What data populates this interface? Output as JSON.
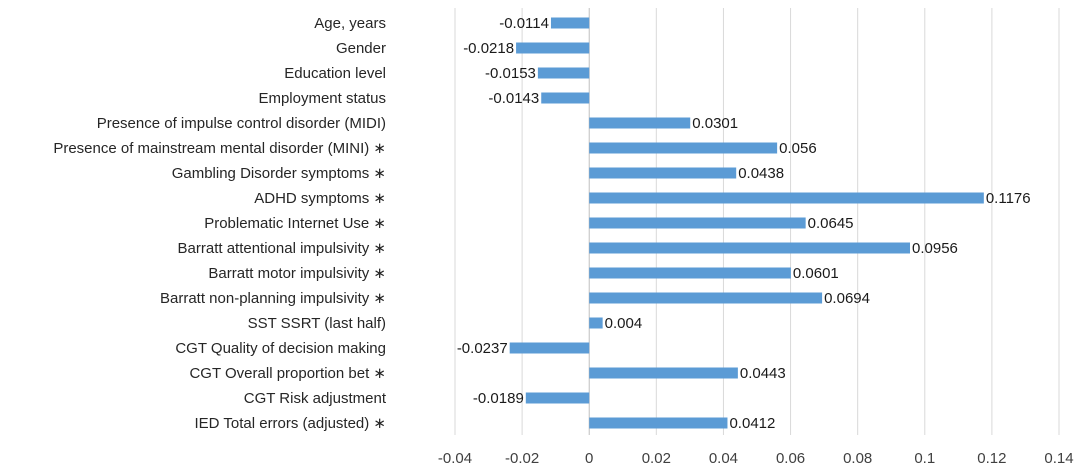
{
  "chart_data": {
    "type": "bar",
    "orientation": "horizontal",
    "categories": [
      "Age, years",
      "Gender",
      "Education level",
      "Employment status",
      "Presence of impulse control disorder (MIDI)",
      "Presence of mainstream mental disorder (MINI) ∗",
      "Gambling Disorder symptoms ∗",
      "ADHD symptoms ∗",
      "Problematic Internet Use ∗",
      "Barratt attentional impulsivity ∗",
      "Barratt motor impulsivity ∗",
      "Barratt non-planning impulsivity ∗",
      "SST SSRT (last half)",
      "CGT Quality of decision making",
      "CGT Overall proportion bet ∗",
      "CGT Risk adjustment",
      "IED Total errors (adjusted) ∗"
    ],
    "values": [
      -0.0114,
      -0.0218,
      -0.0153,
      -0.0143,
      0.0301,
      0.056,
      0.0438,
      0.1176,
      0.0645,
      0.0956,
      0.0601,
      0.0694,
      0.004,
      -0.0237,
      0.0443,
      -0.0189,
      0.0412
    ],
    "value_labels": [
      "-0.0114",
      "-0.0218",
      "-0.0153",
      "-0.0143",
      "0.0301",
      "0.056",
      "0.0438",
      "0.1176",
      "0.0645",
      "0.0956",
      "0.0601",
      "0.0694",
      "0.004",
      "-0.0237",
      "0.0443",
      "-0.0189",
      "0.0412"
    ],
    "xticks": [
      "-0.04",
      "-0.02",
      "0",
      "0.02",
      "0.04",
      "0.06",
      "0.08",
      "0.1",
      "0.12",
      "0.14"
    ],
    "xlim": [
      -0.04,
      0.14
    ],
    "grid": true,
    "bar_color": "#5B9BD5",
    "title": "",
    "xlabel": "",
    "ylabel": ""
  }
}
